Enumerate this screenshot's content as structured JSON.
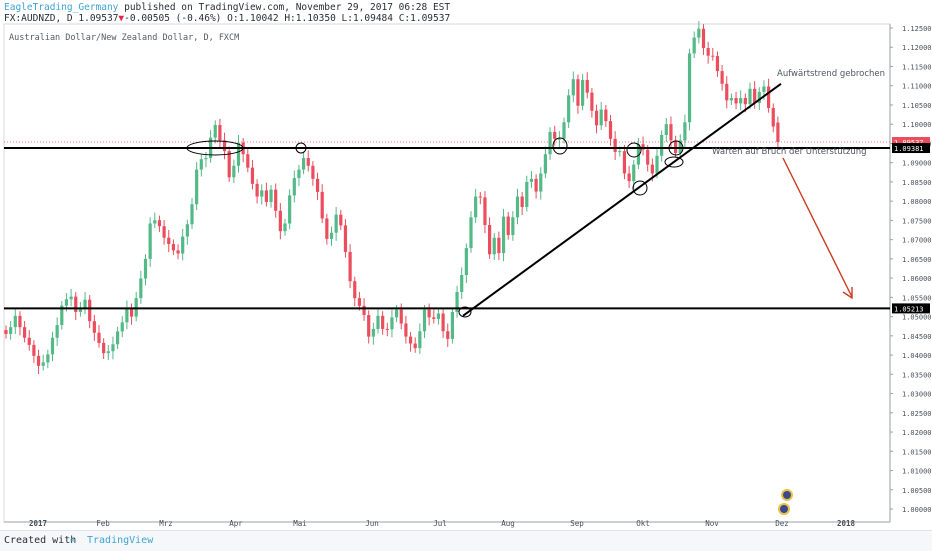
{
  "header": {
    "line1_user": "EagleTrading_Germany",
    "line1_rest": " published on TradingView.com, November 29, 2017 06:28 EST",
    "symbol": "FX:AUDNZD, D",
    "last": "1.09537",
    "change": "-0.00505 (-0.46%)",
    "ohlc": "O:1.10042 H:1.10350 L:1.09484 C:1.09537"
  },
  "footer": {
    "created": "Created with",
    "brand": "TradingView"
  },
  "chart_data": {
    "type": "candlestick",
    "title": "Australian Dollar/New Zealand Dollar, D, FXCM",
    "x_ticks": [
      "2017",
      "Feb",
      "Mrz",
      "Apr",
      "Mai",
      "Jun",
      "Jul",
      "Aug",
      "Sep",
      "Okt",
      "Nov",
      "Dez",
      "2018"
    ],
    "y_ticks": [
      "1.12500",
      "1.12000",
      "1.11500",
      "1.11000",
      "1.10500",
      "1.10000",
      "1.09500",
      "1.09000",
      "1.08500",
      "1.08000",
      "1.07500",
      "1.07000",
      "1.06500",
      "1.06000",
      "1.05500",
      "1.05000",
      "1.04500",
      "1.04000",
      "1.03500",
      "1.03000",
      "1.02500",
      "1.02000",
      "1.01500",
      "1.01000",
      "1.00500",
      "1.00000"
    ],
    "ylim": [
      0.9985,
      1.1265
    ],
    "price_labels": {
      "last": "1.09537",
      "resistance": "1.09381",
      "support": "1.05213"
    },
    "levels": {
      "resistance": 1.09381,
      "support": 1.05213,
      "last": 1.09537
    },
    "colors": {
      "up": "#53b987",
      "down": "#eb4d5c",
      "arrow": "#cc3a1e",
      "line": "#000000",
      "lastline": "#eb4d5c"
    },
    "annotations": {
      "trend_broken": "Aufwärtstrend gebrochen",
      "waiting": "Warten auf Bruch der Unterstützung"
    },
    "close_path": [
      [
        0,
        1.0455
      ],
      [
        2,
        1.049
      ],
      [
        4,
        1.0455
      ],
      [
        6,
        1.0398
      ],
      [
        7,
        1.036
      ],
      [
        9,
        1.0402
      ],
      [
        11,
        1.0488
      ],
      [
        13,
        1.0545
      ],
      [
        14,
        1.0552
      ],
      [
        15,
        1.0512
      ],
      [
        17,
        1.0532
      ],
      [
        18,
        1.0498
      ],
      [
        19,
        1.0458
      ],
      [
        21,
        1.0405
      ],
      [
        22,
        1.0398
      ],
      [
        23,
        1.0428
      ],
      [
        25,
        1.0495
      ],
      [
        26,
        1.0522
      ],
      [
        27,
        1.0488
      ],
      [
        28,
        1.0548
      ],
      [
        30,
        1.065
      ],
      [
        31,
        1.0742
      ],
      [
        33,
        1.0735
      ],
      [
        34,
        1.0705
      ],
      [
        36,
        1.0672
      ],
      [
        37,
        1.0652
      ],
      [
        38,
        1.0708
      ],
      [
        40,
        1.0792
      ],
      [
        41,
        1.0882
      ],
      [
        43,
        1.0912
      ],
      [
        44,
        1.0965
      ],
      [
        45,
        1.0998
      ],
      [
        46,
        1.0968
      ],
      [
        47,
        1.0918
      ],
      [
        48,
        1.0862
      ],
      [
        49,
        1.0892
      ],
      [
        50,
        1.0952
      ],
      [
        51,
        1.0922
      ],
      [
        52,
        1.0875
      ],
      [
        53,
        1.0855
      ],
      [
        54,
        1.0812
      ],
      [
        55,
        1.0828
      ],
      [
        56,
        1.0798
      ],
      [
        57,
        1.0818
      ],
      [
        58,
        1.0775
      ],
      [
        59,
        1.0722
      ],
      [
        60,
        1.0752
      ],
      [
        61,
        1.0815
      ],
      [
        62,
        1.0848
      ],
      [
        63,
        1.0882
      ],
      [
        64,
        1.0912
      ],
      [
        65,
        1.0892
      ],
      [
        66,
        1.0858
      ],
      [
        67,
        1.0812
      ],
      [
        68,
        1.0755
      ],
      [
        69,
        1.0702
      ],
      [
        70,
        1.0718
      ],
      [
        71,
        1.0765
      ],
      [
        72,
        1.0725
      ],
      [
        73,
        1.0668
      ],
      [
        74,
        1.0602
      ],
      [
        75,
        1.0548
      ],
      [
        76,
        1.0528
      ],
      [
        77,
        1.0492
      ],
      [
        78,
        1.0448
      ],
      [
        79,
        1.0468
      ],
      [
        80,
        1.0502
      ],
      [
        81,
        1.0478
      ],
      [
        82,
        1.0455
      ],
      [
        83,
        1.0498
      ],
      [
        84,
        1.0518
      ],
      [
        85,
        1.0482
      ],
      [
        86,
        1.0448
      ],
      [
        87,
        1.0418
      ],
      [
        88,
        1.0428
      ],
      [
        89,
        1.0462
      ],
      [
        90,
        1.0518
      ],
      [
        91,
        1.0498
      ],
      [
        92,
        1.0482
      ],
      [
        93,
        1.0508
      ],
      [
        94,
        1.0462
      ],
      [
        95,
        1.0452
      ],
      [
        96,
        1.0512
      ],
      [
        97,
        1.0552
      ],
      [
        98,
        1.0608
      ],
      [
        99,
        1.0678
      ],
      [
        100,
        1.0758
      ],
      [
        101,
        1.0812
      ],
      [
        102,
        1.0798
      ],
      [
        103,
        1.0738
      ],
      [
        104,
        1.0662
      ],
      [
        105,
        1.0705
      ],
      [
        106,
        1.0665
      ],
      [
        107,
        1.0748
      ],
      [
        108,
        1.0712
      ],
      [
        109,
        1.0768
      ],
      [
        110,
        1.0812
      ],
      [
        111,
        1.0785
      ],
      [
        112,
        1.0838
      ],
      [
        113,
        1.0858
      ],
      [
        114,
        1.0825
      ],
      [
        115,
        1.0872
      ],
      [
        116,
        1.0932
      ],
      [
        117,
        1.0968
      ],
      [
        118,
        1.0962
      ],
      [
        119,
        1.0962
      ],
      [
        120,
        1.1005
      ],
      [
        121,
        1.1075
      ],
      [
        122,
        1.1105
      ],
      [
        123,
        1.1058
      ],
      [
        124,
        1.1115
      ],
      [
        125,
        1.1082
      ],
      [
        126,
        1.1035
      ],
      [
        127,
        1.0985
      ],
      [
        128,
        1.1038
      ],
      [
        129,
        1.1008
      ],
      [
        130,
        1.0972
      ],
      [
        131,
        1.0928
      ],
      [
        132,
        1.0918
      ],
      [
        133,
        1.0872
      ],
      [
        134,
        1.0852
      ],
      [
        135,
        1.0895
      ],
      [
        136,
        1.0948
      ],
      [
        137,
        1.0922
      ],
      [
        138,
        1.0895
      ],
      [
        139,
        1.0872
      ],
      [
        140,
        1.0918
      ],
      [
        141,
        1.0972
      ],
      [
        142,
        1.0988
      ],
      [
        143,
        1.0958
      ],
      [
        144,
        1.0935
      ],
      [
        145,
        1.0958
      ],
      [
        146,
        1.1005
      ],
      [
        147,
        1.1172
      ],
      [
        148,
        1.1225
      ],
      [
        149,
        1.1248
      ],
      [
        150,
        1.1198
      ],
      [
        151,
        1.1188
      ],
      [
        152,
        1.1165
      ],
      [
        153,
        1.1138
      ],
      [
        154,
        1.1105
      ],
      [
        155,
        1.1062
      ],
      [
        156,
        1.1068
      ],
      [
        157,
        1.1042
      ],
      [
        158,
        1.1078
      ],
      [
        159,
        1.1052
      ],
      [
        160,
        1.1092
      ],
      [
        161,
        1.1055
      ],
      [
        162,
        1.1072
      ],
      [
        163,
        1.1098
      ],
      [
        164,
        1.1042
      ],
      [
        165,
        1.1004
      ],
      [
        166,
        1.0954
      ]
    ]
  }
}
